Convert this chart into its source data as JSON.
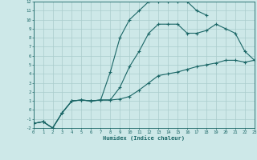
{
  "xlabel": "Humidex (Indice chaleur)",
  "xlim": [
    0,
    23
  ],
  "ylim": [
    -2,
    12
  ],
  "xticks": [
    0,
    1,
    2,
    3,
    4,
    5,
    6,
    7,
    8,
    9,
    10,
    11,
    12,
    13,
    14,
    15,
    16,
    17,
    18,
    19,
    20,
    21,
    22,
    23
  ],
  "yticks": [
    -2,
    -1,
    0,
    1,
    2,
    3,
    4,
    5,
    6,
    7,
    8,
    9,
    10,
    11,
    12
  ],
  "bg_color": "#cde8e8",
  "grid_color": "#aacccc",
  "line_color": "#1a6666",
  "line1_x": [
    0,
    1,
    2,
    3,
    4,
    5,
    6,
    7,
    8,
    9,
    10,
    11,
    12,
    13,
    14,
    15,
    16,
    17,
    18
  ],
  "line1_y": [
    -1.5,
    -1.3,
    -2.0,
    -0.3,
    1.0,
    1.1,
    1.0,
    1.1,
    4.2,
    8.0,
    10.0,
    11.0,
    12.0,
    12.0,
    12.0,
    12.0,
    12.0,
    11.0,
    10.5
  ],
  "line2_x": [
    0,
    1,
    2,
    3,
    4,
    5,
    6,
    7,
    8,
    9,
    10,
    11,
    12,
    13,
    14,
    15,
    16,
    17,
    18,
    19,
    20,
    21,
    22,
    23
  ],
  "line2_y": [
    -1.5,
    -1.3,
    -2.0,
    -0.3,
    1.0,
    1.1,
    1.0,
    1.1,
    1.1,
    2.5,
    4.8,
    6.5,
    8.5,
    9.5,
    9.5,
    9.5,
    8.5,
    8.5,
    8.8,
    9.5,
    9.0,
    8.5,
    6.5,
    5.5
  ],
  "line3_x": [
    0,
    1,
    2,
    3,
    4,
    5,
    6,
    7,
    8,
    9,
    10,
    11,
    12,
    13,
    14,
    15,
    16,
    17,
    18,
    19,
    20,
    21,
    22,
    23
  ],
  "line3_y": [
    -1.5,
    -1.3,
    -2.0,
    -0.3,
    1.0,
    1.1,
    1.0,
    1.1,
    1.1,
    1.2,
    1.5,
    2.2,
    3.0,
    3.8,
    4.0,
    4.2,
    4.5,
    4.8,
    5.0,
    5.2,
    5.5,
    5.5,
    5.3,
    5.5
  ]
}
